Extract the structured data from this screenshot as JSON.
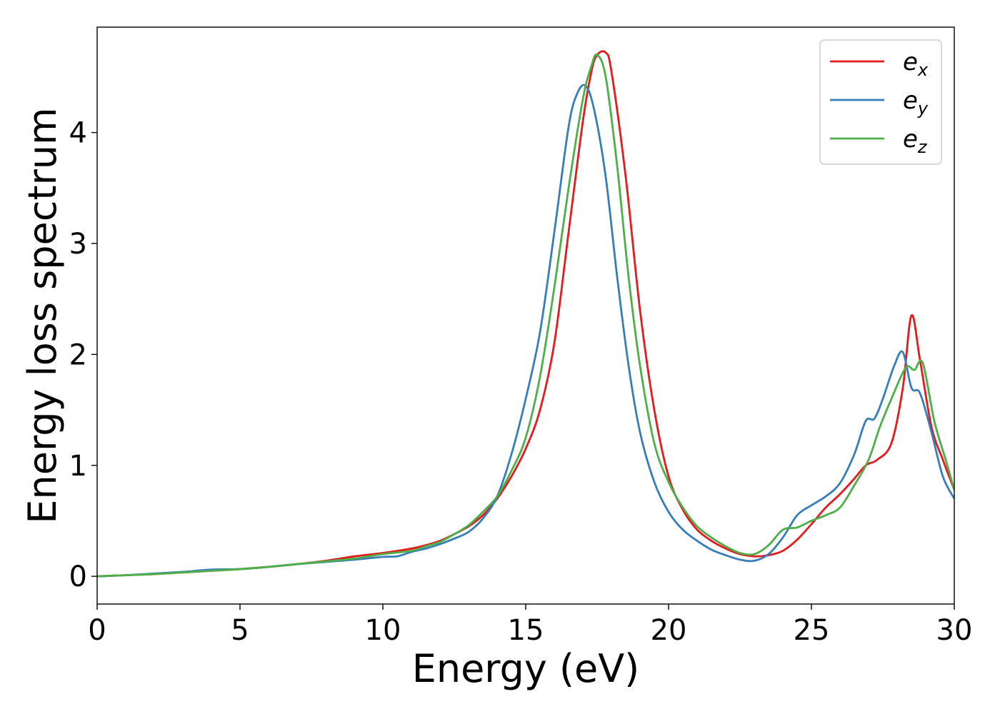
{
  "chart_data": {
    "type": "line",
    "xlabel": "Energy (eV)",
    "ylabel": "Energy loss spectrum",
    "xlim": [
      0,
      30
    ],
    "ylim": [
      -0.25,
      4.95
    ],
    "xticks": [
      0,
      5,
      10,
      15,
      20,
      25,
      30
    ],
    "yticks": [
      0,
      1,
      2,
      3,
      4
    ],
    "grid": false,
    "legend_position": "top-right",
    "series": [
      {
        "name": "e_x",
        "label_base": "e",
        "label_sub": "x",
        "color": "#e41a1c",
        "points": [
          [
            0,
            0.0
          ],
          [
            1,
            0.01
          ],
          [
            2,
            0.02
          ],
          [
            3,
            0.035
          ],
          [
            4,
            0.05
          ],
          [
            5,
            0.065
          ],
          [
            6,
            0.085
          ],
          [
            7,
            0.11
          ],
          [
            8,
            0.14
          ],
          [
            9,
            0.18
          ],
          [
            10,
            0.21
          ],
          [
            11,
            0.25
          ],
          [
            11.5,
            0.28
          ],
          [
            12,
            0.32
          ],
          [
            12.5,
            0.38
          ],
          [
            13,
            0.45
          ],
          [
            13.5,
            0.55
          ],
          [
            14,
            0.7
          ],
          [
            14.5,
            0.9
          ],
          [
            15,
            1.15
          ],
          [
            15.5,
            1.5
          ],
          [
            16,
            2.1
          ],
          [
            16.5,
            3.1
          ],
          [
            17,
            4.1
          ],
          [
            17.3,
            4.55
          ],
          [
            17.5,
            4.7
          ],
          [
            17.8,
            4.72
          ],
          [
            18,
            4.55
          ],
          [
            18.5,
            3.6
          ],
          [
            19,
            2.4
          ],
          [
            19.5,
            1.5
          ],
          [
            20,
            0.9
          ],
          [
            20.5,
            0.6
          ],
          [
            21,
            0.42
          ],
          [
            21.5,
            0.32
          ],
          [
            22,
            0.25
          ],
          [
            22.5,
            0.2
          ],
          [
            23,
            0.18
          ],
          [
            23.5,
            0.19
          ],
          [
            24,
            0.23
          ],
          [
            24.5,
            0.33
          ],
          [
            25,
            0.47
          ],
          [
            25.5,
            0.62
          ],
          [
            26,
            0.74
          ],
          [
            26.5,
            0.88
          ],
          [
            26.9,
            1.0
          ],
          [
            27.3,
            1.05
          ],
          [
            27.8,
            1.2
          ],
          [
            28.2,
            1.7
          ],
          [
            28.5,
            2.35
          ],
          [
            28.8,
            1.95
          ],
          [
            29.2,
            1.35
          ],
          [
            29.6,
            1.05
          ],
          [
            30,
            0.78
          ]
        ]
      },
      {
        "name": "e_y",
        "label_base": "e",
        "label_sub": "y",
        "color": "#377eb8",
        "points": [
          [
            0,
            0.0
          ],
          [
            1,
            0.01
          ],
          [
            2,
            0.025
          ],
          [
            3,
            0.04
          ],
          [
            4,
            0.06
          ],
          [
            5,
            0.065
          ],
          [
            6,
            0.085
          ],
          [
            7,
            0.11
          ],
          [
            8,
            0.13
          ],
          [
            9,
            0.15
          ],
          [
            10,
            0.175
          ],
          [
            10.5,
            0.18
          ],
          [
            11,
            0.22
          ],
          [
            11.5,
            0.25
          ],
          [
            12,
            0.29
          ],
          [
            12.5,
            0.34
          ],
          [
            13,
            0.4
          ],
          [
            13.5,
            0.52
          ],
          [
            14,
            0.72
          ],
          [
            14.5,
            1.1
          ],
          [
            15,
            1.6
          ],
          [
            15.5,
            2.2
          ],
          [
            16,
            3.1
          ],
          [
            16.5,
            4.05
          ],
          [
            16.8,
            4.35
          ],
          [
            17.1,
            4.42
          ],
          [
            17.4,
            4.2
          ],
          [
            17.8,
            3.6
          ],
          [
            18.2,
            2.7
          ],
          [
            18.6,
            1.9
          ],
          [
            19,
            1.3
          ],
          [
            19.5,
            0.85
          ],
          [
            20,
            0.58
          ],
          [
            20.5,
            0.42
          ],
          [
            21,
            0.32
          ],
          [
            21.5,
            0.24
          ],
          [
            22,
            0.19
          ],
          [
            22.5,
            0.15
          ],
          [
            23,
            0.14
          ],
          [
            23.5,
            0.2
          ],
          [
            24,
            0.35
          ],
          [
            24.5,
            0.55
          ],
          [
            25,
            0.64
          ],
          [
            25.5,
            0.72
          ],
          [
            26,
            0.84
          ],
          [
            26.5,
            1.1
          ],
          [
            26.9,
            1.4
          ],
          [
            27.2,
            1.42
          ],
          [
            27.5,
            1.6
          ],
          [
            27.9,
            1.9
          ],
          [
            28.2,
            2.02
          ],
          [
            28.5,
            1.7
          ],
          [
            28.8,
            1.65
          ],
          [
            29.2,
            1.3
          ],
          [
            29.6,
            0.9
          ],
          [
            30,
            0.7
          ]
        ]
      },
      {
        "name": "e_z",
        "label_base": "e",
        "label_sub": "z",
        "color": "#4daf4a",
        "points": [
          [
            0,
            0.0
          ],
          [
            1,
            0.01
          ],
          [
            2,
            0.02
          ],
          [
            3,
            0.035
          ],
          [
            4,
            0.05
          ],
          [
            5,
            0.065
          ],
          [
            6,
            0.085
          ],
          [
            7,
            0.11
          ],
          [
            8,
            0.135
          ],
          [
            9,
            0.16
          ],
          [
            10,
            0.2
          ],
          [
            11,
            0.23
          ],
          [
            11.5,
            0.27
          ],
          [
            12,
            0.31
          ],
          [
            12.5,
            0.38
          ],
          [
            13,
            0.46
          ],
          [
            13.5,
            0.58
          ],
          [
            14,
            0.72
          ],
          [
            14.5,
            0.95
          ],
          [
            15,
            1.25
          ],
          [
            15.5,
            1.8
          ],
          [
            16,
            2.6
          ],
          [
            16.5,
            3.5
          ],
          [
            17,
            4.3
          ],
          [
            17.3,
            4.6
          ],
          [
            17.5,
            4.7
          ],
          [
            17.8,
            4.5
          ],
          [
            18.2,
            3.7
          ],
          [
            18.6,
            2.7
          ],
          [
            19,
            1.9
          ],
          [
            19.5,
            1.2
          ],
          [
            20,
            0.85
          ],
          [
            20.5,
            0.62
          ],
          [
            21,
            0.45
          ],
          [
            21.5,
            0.35
          ],
          [
            22,
            0.27
          ],
          [
            22.5,
            0.21
          ],
          [
            23,
            0.2
          ],
          [
            23.5,
            0.28
          ],
          [
            24,
            0.42
          ],
          [
            24.5,
            0.44
          ],
          [
            25,
            0.5
          ],
          [
            25.5,
            0.55
          ],
          [
            26,
            0.62
          ],
          [
            26.5,
            0.82
          ],
          [
            27,
            1.05
          ],
          [
            27.4,
            1.35
          ],
          [
            27.8,
            1.6
          ],
          [
            28.3,
            1.88
          ],
          [
            28.6,
            1.86
          ],
          [
            28.9,
            1.92
          ],
          [
            29.3,
            1.4
          ],
          [
            29.7,
            1.05
          ],
          [
            30,
            0.78
          ]
        ]
      }
    ]
  }
}
